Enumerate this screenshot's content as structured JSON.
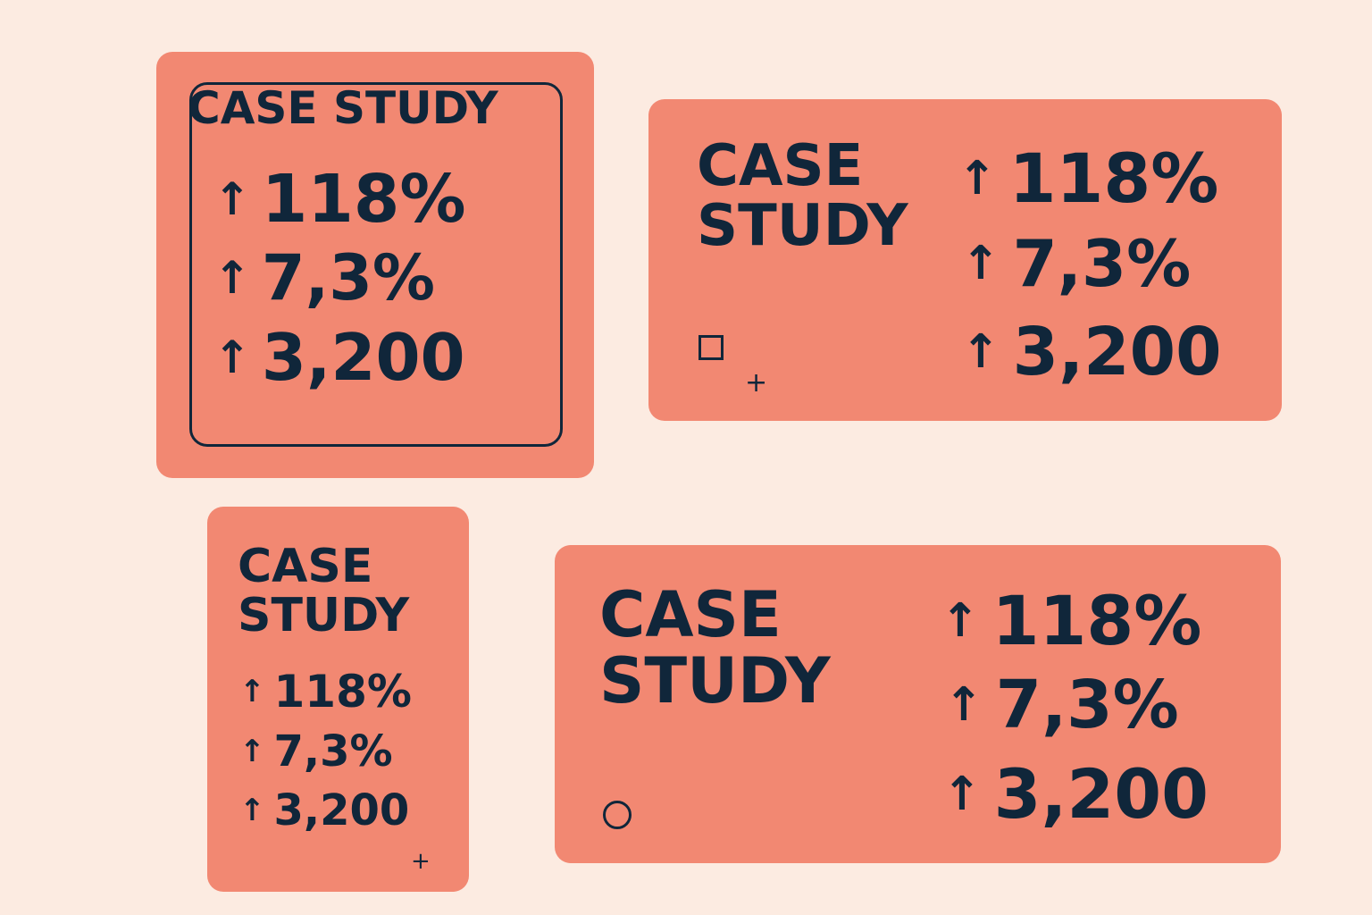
{
  "colors": {
    "background": "#fcebe1",
    "card": "#f28872",
    "ink": "#10263a"
  },
  "cards": [
    {
      "title": "CASE STUDY",
      "stats": [
        {
          "arrow": "↑",
          "value": "118%"
        },
        {
          "arrow": "↑",
          "value": "7,3%"
        },
        {
          "arrow": "↑",
          "value": "3,200"
        }
      ]
    },
    {
      "title_line1": "CASE",
      "title_line2": "STUDY",
      "stats": [
        {
          "arrow": "↑",
          "value": "118%"
        },
        {
          "arrow": "↑",
          "value": "7,3%"
        },
        {
          "arrow": "↑",
          "value": "3,200"
        }
      ],
      "plus": "+"
    },
    {
      "title_line1": "CASE",
      "title_line2": "STUDY",
      "stats": [
        {
          "arrow": "↑",
          "value": "118%"
        },
        {
          "arrow": "↑",
          "value": "7,3%"
        },
        {
          "arrow": "↑",
          "value": "3,200"
        }
      ],
      "plus": "+"
    },
    {
      "title_line1": "CASE",
      "title_line2": "STUDY",
      "stats": [
        {
          "arrow": "↑",
          "value": "118%"
        },
        {
          "arrow": "↑",
          "value": "7,3%"
        },
        {
          "arrow": "↑",
          "value": "3,200"
        }
      ]
    }
  ],
  "icons": {
    "arrow": "arrow-up-icon",
    "square": "square-outline-icon",
    "plus": "plus-icon",
    "circle": "circle-outline-icon"
  }
}
